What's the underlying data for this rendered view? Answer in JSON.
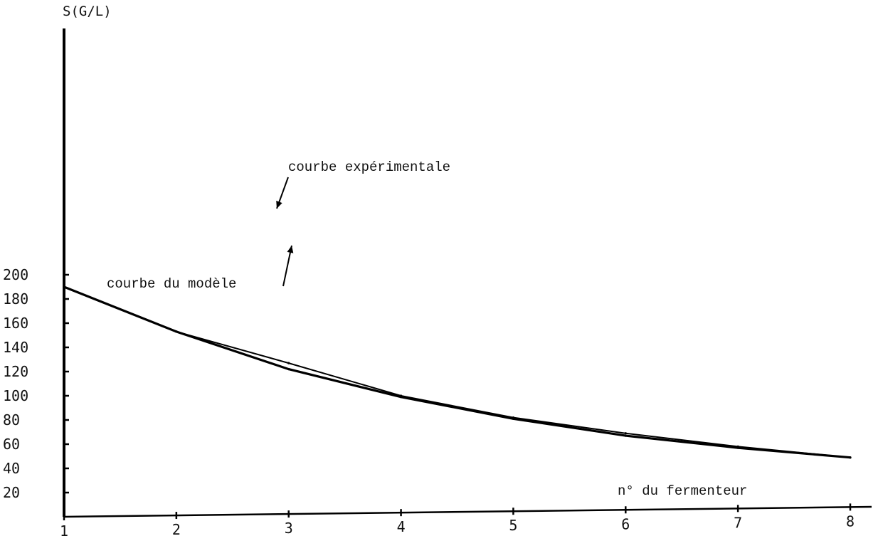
{
  "chart_data": {
    "type": "line",
    "xlabel": "n° du fermenteur",
    "ylabel": "S(G/L)",
    "x": [
      1,
      2,
      3,
      4,
      5,
      6,
      7,
      8
    ],
    "xlim": [
      1,
      8
    ],
    "ylim": [
      0,
      200
    ],
    "x_ticks": [
      "1",
      "2",
      "3",
      "4",
      "5",
      "6",
      "7",
      "8"
    ],
    "y_ticks": [
      "20",
      "40",
      "60",
      "80",
      "100",
      "120",
      "140",
      "160",
      "180",
      "200"
    ],
    "y_tick_values": [
      20,
      40,
      60,
      80,
      100,
      120,
      140,
      160,
      180,
      200
    ],
    "grid": false,
    "series": [
      {
        "name": "courbe expérimentale",
        "values": [
          190,
          153,
          127,
          100,
          82,
          69,
          58,
          49
        ]
      },
      {
        "name": "courbe du modèle",
        "values": [
          190,
          153,
          122,
          99,
          81,
          67,
          57,
          49
        ]
      }
    ],
    "annotations": [
      {
        "text": "courbe expérimentale",
        "series": 0,
        "x": 3.1
      },
      {
        "text": "courbe du modèle",
        "series": 1,
        "x": 3.0
      }
    ]
  }
}
